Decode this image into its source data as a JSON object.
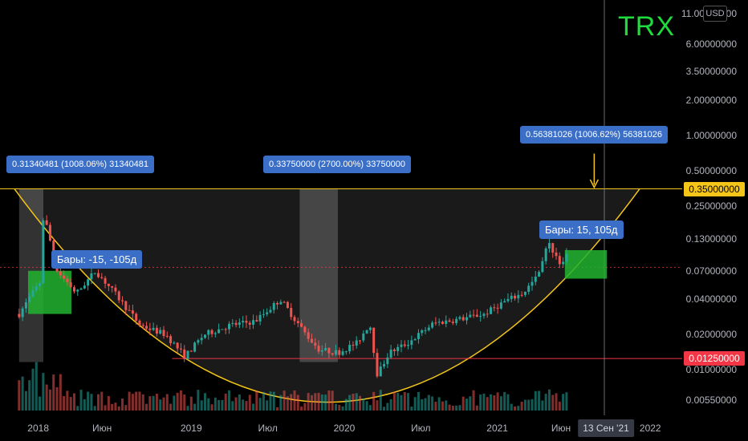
{
  "symbol": "TRX",
  "currency": "USD",
  "price_axis": {
    "ticks": [
      {
        "label": "11.00000000",
        "v": 11.0
      },
      {
        "label": "6.00000000",
        "v": 6.0
      },
      {
        "label": "3.50000000",
        "v": 3.5
      },
      {
        "label": "2.00000000",
        "v": 2.0
      },
      {
        "label": "1.00000000",
        "v": 1.0
      },
      {
        "label": "0.50000000",
        "v": 0.5
      },
      {
        "label": "0.25000000",
        "v": 0.25
      },
      {
        "label": "0.13000000",
        "v": 0.13
      },
      {
        "label": "0.07000000",
        "v": 0.07
      },
      {
        "label": "0.04000000",
        "v": 0.04
      },
      {
        "label": "0.02000000",
        "v": 0.02
      },
      {
        "label": "0.01000000",
        "v": 0.01
      },
      {
        "label": "0.00550000",
        "v": 0.0055
      }
    ],
    "tags": [
      {
        "label": "0.35000000",
        "v": 0.35,
        "bg": "#f5c518",
        "fg": "#000000"
      },
      {
        "label": "0.01250000",
        "v": 0.0125,
        "bg": "#f23645",
        "fg": "#ffffff"
      }
    ]
  },
  "time_axis": {
    "ticks": [
      {
        "label": "2018",
        "m": 0
      },
      {
        "label": "Июн",
        "m": 5
      },
      {
        "label": "2019",
        "m": 12
      },
      {
        "label": "Июл",
        "m": 18
      },
      {
        "label": "2020",
        "m": 24
      },
      {
        "label": "Июл",
        "m": 30
      },
      {
        "label": "2021",
        "m": 36
      },
      {
        "label": "Июн",
        "m": 41
      },
      {
        "label": "2022",
        "m": 48
      }
    ],
    "current_date": {
      "label": "13 Сен '21",
      "m": 44.4
    }
  },
  "measure_labels": {
    "left": "0.31340481 (1008.06%) 31340481",
    "middle": "0.33750000 (2700.00%) 33750000",
    "right": "0.56381026 (1006.62%) 56381026"
  },
  "bar_labels": {
    "left": "Бары: -15, -105д",
    "right": "Бары: 15, 105д"
  },
  "colors": {
    "up": "#26a69a",
    "down": "#ef5350",
    "cup_line": "#f5c518",
    "support_line": "#f23645",
    "label_bg": "#3a6ec7",
    "green_box": "#22b430",
    "symbol": "#1edc3c"
  },
  "chart_data": {
    "type": "candlestick",
    "scale": "log",
    "ylim": [
      0.0045,
      13.0
    ],
    "x_unit": "months since Jan 2018",
    "xlim": [
      -3.0,
      50.5
    ],
    "resistance": 0.35,
    "support": 0.0125,
    "reference": 0.075,
    "anchors": [
      {
        "m": -1.5,
        "v": 0.03
      },
      {
        "m": 0.3,
        "v": 0.06
      },
      {
        "m": 0.4,
        "v": 0.22
      },
      {
        "m": 1.5,
        "v": 0.07
      },
      {
        "m": 3,
        "v": 0.045
      },
      {
        "m": 4.5,
        "v": 0.07
      },
      {
        "m": 6,
        "v": 0.045
      },
      {
        "m": 8,
        "v": 0.024
      },
      {
        "m": 10,
        "v": 0.02
      },
      {
        "m": 11.5,
        "v": 0.013
      },
      {
        "m": 13,
        "v": 0.02
      },
      {
        "m": 15,
        "v": 0.024
      },
      {
        "m": 17,
        "v": 0.026
      },
      {
        "m": 19,
        "v": 0.04
      },
      {
        "m": 21,
        "v": 0.02
      },
      {
        "m": 22,
        "v": 0.015
      },
      {
        "m": 23.5,
        "v": 0.014
      },
      {
        "m": 25,
        "v": 0.017
      },
      {
        "m": 26,
        "v": 0.025
      },
      {
        "m": 26.6,
        "v": 0.009
      },
      {
        "m": 27.5,
        "v": 0.014
      },
      {
        "m": 29,
        "v": 0.017
      },
      {
        "m": 31,
        "v": 0.025
      },
      {
        "m": 33,
        "v": 0.027
      },
      {
        "m": 35,
        "v": 0.03
      },
      {
        "m": 36.5,
        "v": 0.038
      },
      {
        "m": 38,
        "v": 0.045
      },
      {
        "m": 39,
        "v": 0.06
      },
      {
        "m": 40,
        "v": 0.12
      },
      {
        "m": 41,
        "v": 0.08
      },
      {
        "m": 41.5,
        "v": 0.095
      }
    ]
  }
}
